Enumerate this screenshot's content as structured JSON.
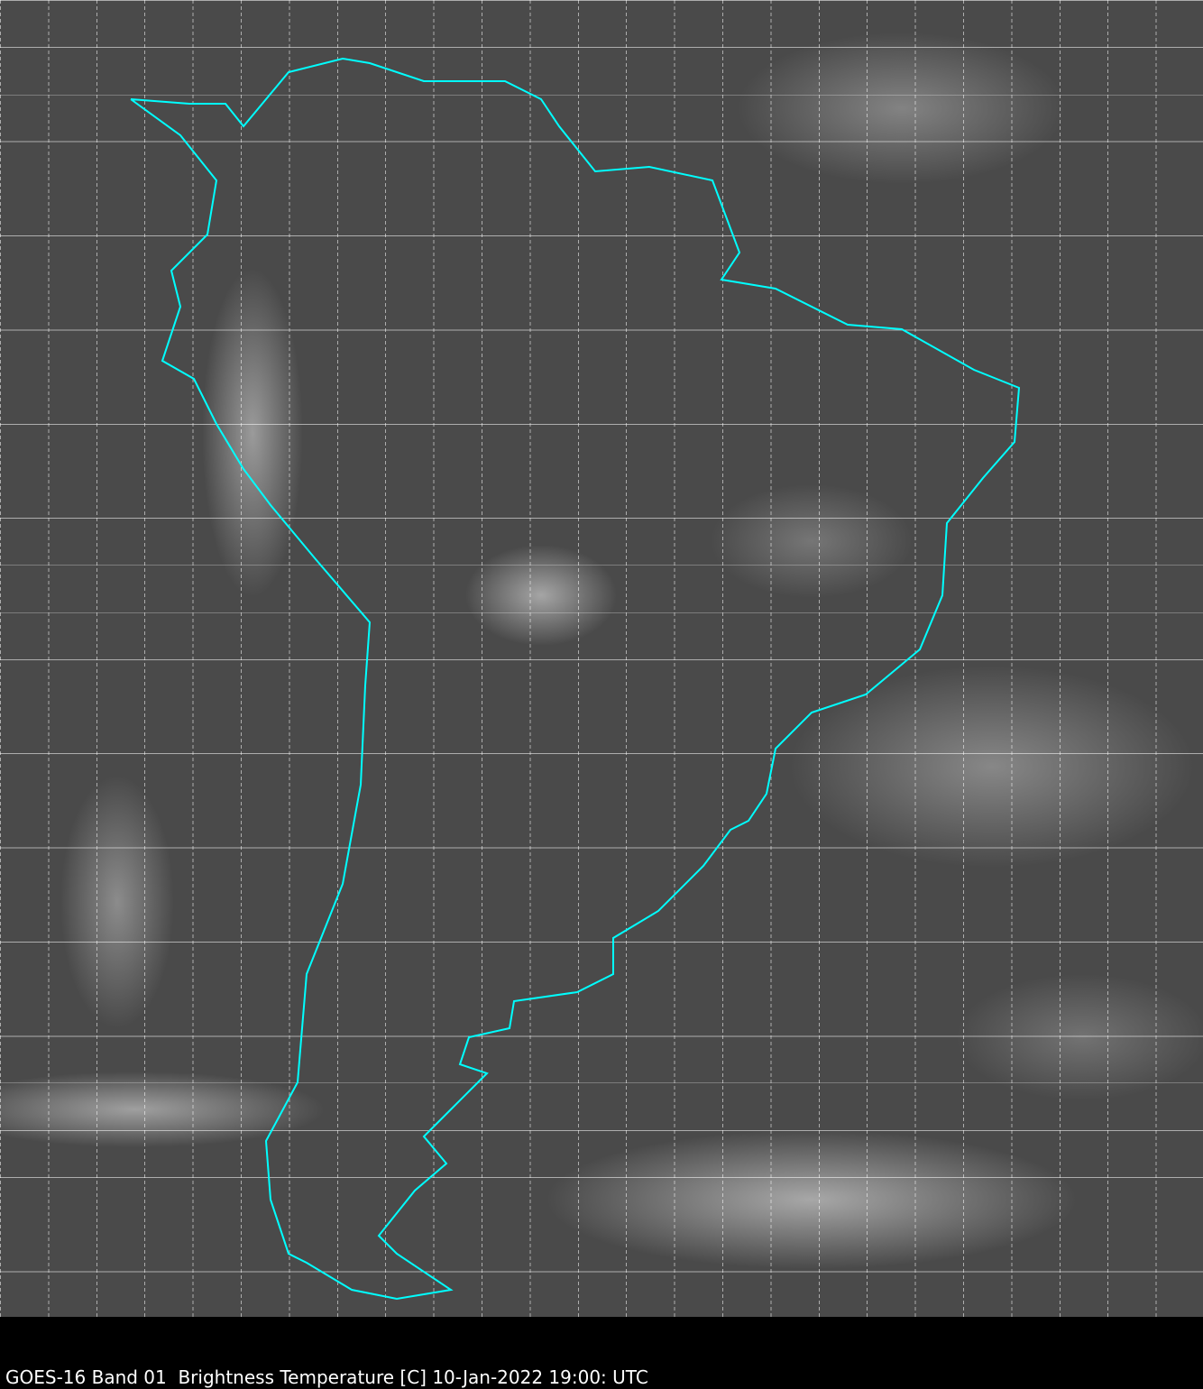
{
  "caption": "GOES-16 Band 01  Brightness Temperature [C] 10-Jan-2022 19:00: UTC",
  "colors": {
    "coastline": "#00ffff",
    "grid": "#ffffff",
    "background": "#000000"
  },
  "map": {
    "region": "South America",
    "imagery": "satellite-grayscale"
  }
}
